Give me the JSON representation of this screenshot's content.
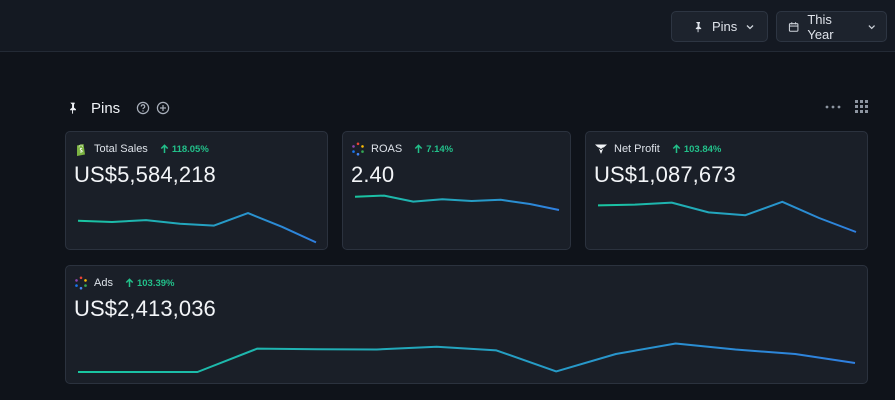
{
  "header": {
    "pins_dropdown": {
      "label": "Pins",
      "icon": "pin-icon"
    },
    "period_dropdown": {
      "label": "This Year",
      "icon": "calendar-icon"
    }
  },
  "section": {
    "title": "Pins",
    "icons": [
      "pin-icon",
      "help-circle-icon",
      "add-circle-icon",
      "more-horizontal-icon",
      "grid-icon"
    ]
  },
  "colors": {
    "positive": "#22c08a",
    "spark_start": "#19c6a0",
    "spark_end": "#2f7fe0"
  },
  "cards": [
    {
      "id": "total-sales",
      "name": "Total Sales",
      "icon": "shopify-icon",
      "delta": "118.05%",
      "value": "US$5,584,218",
      "trend": [
        0.3,
        0.25,
        0.33,
        0.18,
        0.1,
        0.62,
        0.05,
        -0.6
      ]
    },
    {
      "id": "roas",
      "name": "ROAS",
      "icon": "dots-ring-icon",
      "delta": "7.14%",
      "value": "2.40",
      "trend": [
        0.52,
        0.54,
        0.44,
        0.48,
        0.45,
        0.47,
        0.4,
        0.3
      ]
    },
    {
      "id": "net-profit",
      "name": "Net Profit",
      "icon": "triple-whale-icon",
      "delta": "103.84%",
      "value": "US$1,087,673",
      "trend": [
        0.45,
        0.48,
        0.55,
        0.2,
        0.1,
        0.58,
        0.0,
        -0.5
      ]
    },
    {
      "id": "ads",
      "name": "Ads",
      "icon": "dots-ring-icon",
      "delta": "103.39%",
      "value": "US$2,413,036",
      "trend": [
        0.0,
        0.0,
        0.0,
        0.78,
        0.76,
        0.75,
        0.84,
        0.72,
        0.02,
        0.6,
        0.95,
        0.75,
        0.6,
        0.3
      ]
    }
  ]
}
